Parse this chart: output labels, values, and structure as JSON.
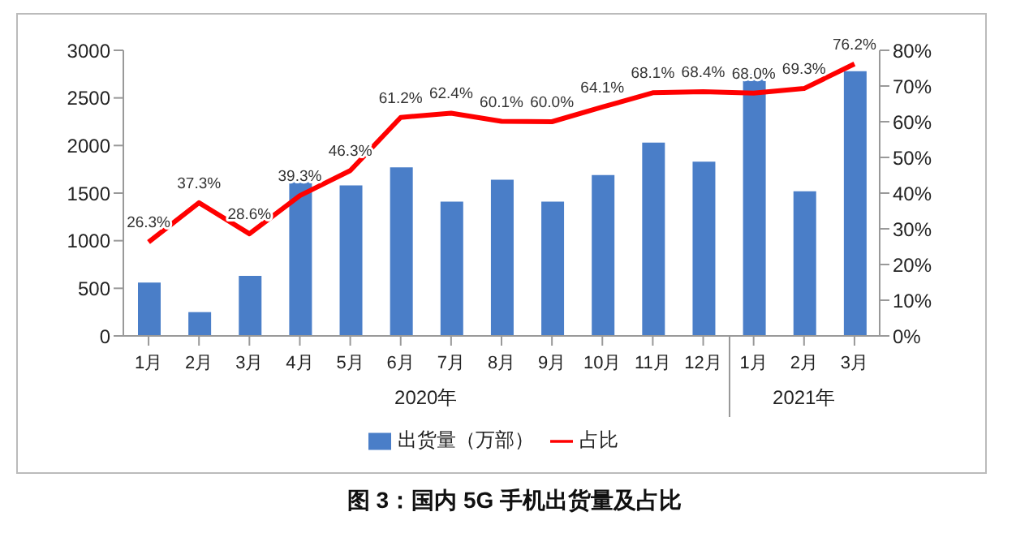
{
  "chart_data": {
    "type": "bar",
    "title": "图 3：国内 5G 手机出货量及占比",
    "categories": [
      "1月",
      "2月",
      "3月",
      "4月",
      "5月",
      "6月",
      "7月",
      "8月",
      "9月",
      "10月",
      "11月",
      "12月",
      "1月",
      "2月",
      "3月"
    ],
    "annotations": [
      "2020年",
      "2021年"
    ],
    "series": [
      {
        "name": "出货量（万部）",
        "color": "#4a7ec8",
        "values": [
          560,
          250,
          630,
          1650,
          1580,
          1770,
          1410,
          1640,
          1410,
          1690,
          2030,
          1830,
          2750,
          1520,
          2780
        ]
      },
      {
        "name": "占比",
        "type": "line",
        "axis": "y2",
        "color": "#ff0000",
        "values": [
          26.3,
          37.3,
          28.6,
          39.3,
          46.3,
          61.2,
          62.4,
          60.1,
          60.0,
          64.1,
          68.1,
          68.4,
          68.0,
          69.3,
          76.2
        ],
        "value_labels": [
          "26.3%",
          "37.3%",
          "28.6%",
          "39.3%",
          "46.3%",
          "61.2%",
          "62.4%",
          "60.1%",
          "60.0%",
          "64.1%",
          "68.1%",
          "68.4%",
          "68.0%",
          "69.3%",
          "76.2%"
        ]
      }
    ],
    "ylim": [
      0,
      3000
    ],
    "yticks": [
      0,
      500,
      1000,
      1500,
      2000,
      2500,
      3000
    ],
    "y2lim": [
      0,
      80
    ],
    "y2ticks": [
      {
        "value": 0,
        "label": "0%"
      },
      {
        "value": 10,
        "label": "10%"
      },
      {
        "value": 20,
        "label": "20%"
      },
      {
        "value": 30,
        "label": "30%"
      },
      {
        "value": 40,
        "label": "40%"
      },
      {
        "value": 50,
        "label": "50%"
      },
      {
        "value": 60,
        "label": "60%"
      },
      {
        "value": 70,
        "label": "70%"
      },
      {
        "value": 80,
        "label": "80%"
      }
    ],
    "marker": "none",
    "line_style": "solid",
    "grid": false,
    "legend": "bottom"
  }
}
